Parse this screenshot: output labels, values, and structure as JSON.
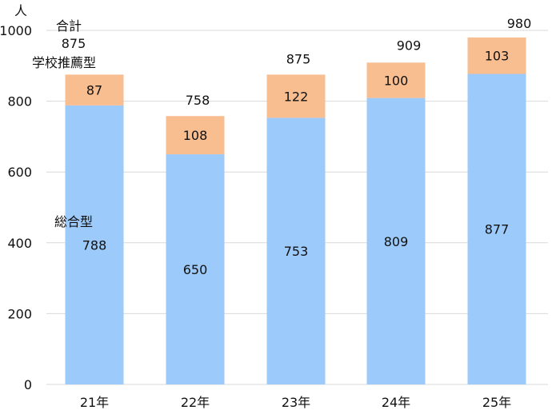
{
  "chart_data": {
    "type": "bar",
    "stacked": true,
    "ylabel": "人",
    "categories": [
      "21年",
      "22年",
      "23年",
      "24年",
      "25年"
    ],
    "series": [
      {
        "name": "総合型",
        "values": [
          788,
          650,
          753,
          809,
          877
        ],
        "color": "#9ccafa"
      },
      {
        "name": "学校推薦型",
        "values": [
          87,
          108,
          122,
          100,
          103
        ],
        "color": "#f8be90"
      }
    ],
    "totals_label": "合計",
    "totals": [
      875,
      758,
      875,
      909,
      980
    ],
    "ylim": [
      0,
      1000
    ],
    "yticks": [
      0,
      200,
      400,
      600,
      800,
      1000
    ],
    "grid": true,
    "gridline_color": "#d9d9d9"
  }
}
